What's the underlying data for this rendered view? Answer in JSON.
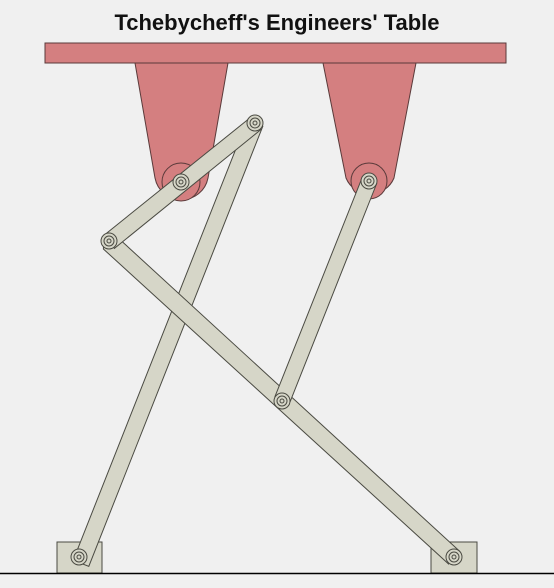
{
  "title": "Tchebycheff's Engineers' Table",
  "colors": {
    "background": "#f0f0f0",
    "tabletop": "#d47f80",
    "tabletop_stroke": "#5a3a3a",
    "link_fill": "#d6d6c8",
    "link_stroke": "#4a4a42",
    "ground": "#000000"
  }
}
